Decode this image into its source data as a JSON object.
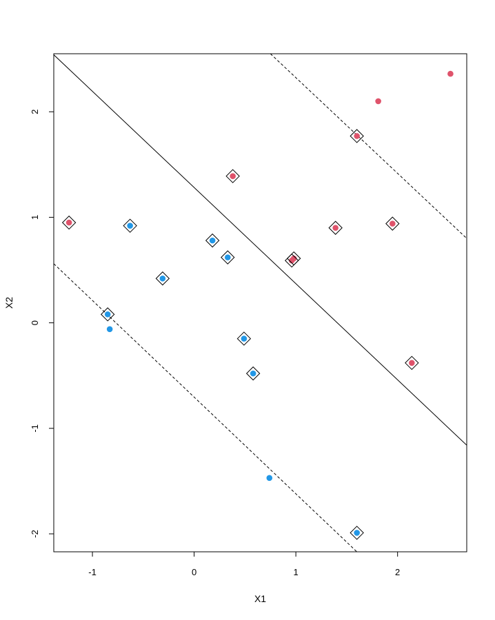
{
  "chart_data": {
    "type": "scatter",
    "title": "",
    "xlabel": "X1",
    "ylabel": "X2",
    "xlim": [
      -1.38,
      2.68
    ],
    "ylim": [
      -2.17,
      2.55
    ],
    "xticks": [
      -1,
      0,
      1,
      2
    ],
    "yticks": [
      -2,
      -1,
      0,
      1,
      2
    ],
    "xtick_labels": [
      "-1",
      "0",
      "1",
      "2"
    ],
    "ytick_labels": [
      "-2",
      "-1",
      "0",
      "1",
      "2"
    ],
    "grid": false,
    "colors": {
      "class_a": "#df536b",
      "class_b": "#2297e6",
      "lines": "#000000"
    },
    "series": [
      {
        "class": "class_a",
        "points": [
          {
            "x": 2.52,
            "y": 2.36,
            "sv": false
          },
          {
            "x": 1.81,
            "y": 2.1,
            "sv": false
          },
          {
            "x": 1.6,
            "y": 1.77,
            "sv": true
          },
          {
            "x": 0.38,
            "y": 1.39,
            "sv": true
          },
          {
            "x": -1.23,
            "y": 0.95,
            "sv": true
          },
          {
            "x": 1.39,
            "y": 0.9,
            "sv": true
          },
          {
            "x": 1.95,
            "y": 0.94,
            "sv": true
          },
          {
            "x": 0.96,
            "y": 0.59,
            "sv": true
          },
          {
            "x": 0.98,
            "y": 0.61,
            "sv": true
          },
          {
            "x": 2.14,
            "y": -0.38,
            "sv": true
          }
        ]
      },
      {
        "class": "class_b",
        "points": [
          {
            "x": -0.63,
            "y": 0.92,
            "sv": true
          },
          {
            "x": 0.18,
            "y": 0.78,
            "sv": true
          },
          {
            "x": 0.33,
            "y": 0.62,
            "sv": true
          },
          {
            "x": -0.31,
            "y": 0.42,
            "sv": true
          },
          {
            "x": -0.85,
            "y": 0.08,
            "sv": true
          },
          {
            "x": -0.83,
            "y": -0.06,
            "sv": false
          },
          {
            "x": 0.49,
            "y": -0.15,
            "sv": true
          },
          {
            "x": 0.58,
            "y": -0.48,
            "sv": true
          },
          {
            "x": 0.74,
            "y": -1.47,
            "sv": false
          },
          {
            "x": 1.6,
            "y": -1.99,
            "sv": true
          }
        ]
      }
    ],
    "lines": [
      {
        "role": "decision-boundary",
        "style": "solid",
        "points": [
          [
            -1.38,
            2.54
          ],
          [
            2.68,
            -1.16
          ]
        ]
      },
      {
        "role": "margin-upper",
        "style": "dashed",
        "points": [
          [
            0.75,
            2.55
          ],
          [
            2.68,
            0.8
          ]
        ]
      },
      {
        "role": "margin-lower",
        "style": "dashed",
        "points": [
          [
            -1.38,
            0.56
          ],
          [
            1.6,
            -2.17
          ]
        ]
      }
    ]
  }
}
